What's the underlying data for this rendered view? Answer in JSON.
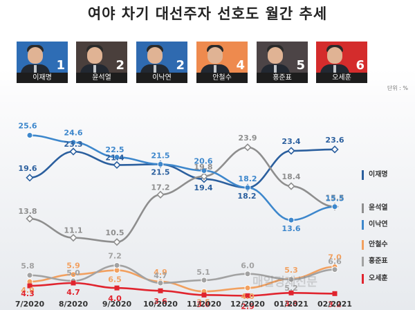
{
  "title": "여야 차기 대선주자 선호도 월간 추세",
  "unit_label": "단위 : %",
  "watermark": "매일경제신문",
  "candidates": [
    {
      "name": "이재명",
      "rank": "1",
      "bg": "#2e6db5"
    },
    {
      "name": "윤석열",
      "rank": "2",
      "bg": "#4a3f3c"
    },
    {
      "name": "이낙연",
      "rank": "2",
      "bg": "#2f6ab0"
    },
    {
      "name": "안철수",
      "rank": "4",
      "bg": "#ee8a4e"
    },
    {
      "name": "홍준표",
      "rank": "5",
      "bg": "#4c4446"
    },
    {
      "name": "오세훈",
      "rank": "6",
      "bg": "#d42c2c"
    }
  ],
  "chart_data": {
    "type": "line",
    "title": "여야 차기 대선주자 선호도 월간 추세",
    "x": [
      "7/2020",
      "8/2020",
      "9/2020",
      "10/2020",
      "11/2020",
      "12/2020",
      "01/2021",
      "02/2021"
    ],
    "ylim": [
      0,
      28
    ],
    "grid": false,
    "legend_position": "right",
    "series": [
      {
        "name": "이재명",
        "color": "#2b5f9e",
        "marker": "diamond",
        "values": [
          19.6,
          23.3,
          21.4,
          21.5,
          19.4,
          18.2,
          23.4,
          23.6
        ]
      },
      {
        "name": "윤석열",
        "color": "#8e8e8e",
        "marker": "diamond",
        "values": [
          13.8,
          11.1,
          10.5,
          17.2,
          19.8,
          23.9,
          18.4,
          15.5
        ]
      },
      {
        "name": "이낙연",
        "color": "#3d87cc",
        "marker": "circle",
        "values": [
          25.6,
          24.6,
          22.5,
          21.5,
          20.6,
          18.2,
          13.6,
          15.5
        ]
      },
      {
        "name": "안철수",
        "color": "#f2a05f",
        "marker": "circle",
        "values": [
          4.9,
          5.9,
          6.5,
          4.9,
          3.5,
          4.0,
          5.3,
          7.0
        ]
      },
      {
        "name": "홍준표",
        "color": "#a2a2a2",
        "marker": "circle",
        "values": [
          5.8,
          5.0,
          7.2,
          4.7,
          5.1,
          6.0,
          5.2,
          6.6
        ]
      },
      {
        "name": "오세훈",
        "color": "#e0242e",
        "marker": "square",
        "values": [
          4.3,
          4.7,
          4.0,
          3.6,
          3.0,
          2.9,
          3.3,
          3.2
        ]
      }
    ],
    "labels": {
      "이재명": [
        "19.6",
        "23.3",
        "21.4",
        "21.5",
        "19.4",
        "18.2",
        "23.4",
        "23.6"
      ],
      "윤석열": [
        "13.8",
        "11.1",
        "10.5",
        "17.2",
        "19.8",
        "23.9",
        "18.4",
        "15.5"
      ],
      "이낙연": [
        "25.6",
        "24.6",
        "22.5",
        "21.5",
        "20.6",
        "18.2",
        "13.6",
        "15.5"
      ],
      "안철수": [
        "4.9",
        "5.9",
        "6.5",
        "4.9",
        "3.5",
        "4.0",
        "5.3",
        "7.0"
      ],
      "홍준표": [
        "5.8",
        "5.0",
        "7.2",
        "4.7",
        "5.1",
        "6.0",
        "5.2",
        "6.6"
      ],
      "오세훈": [
        "4.3",
        "4.7",
        "4.0",
        "3.6",
        "3.0",
        "2.9",
        "3.3",
        "3.2"
      ]
    }
  }
}
